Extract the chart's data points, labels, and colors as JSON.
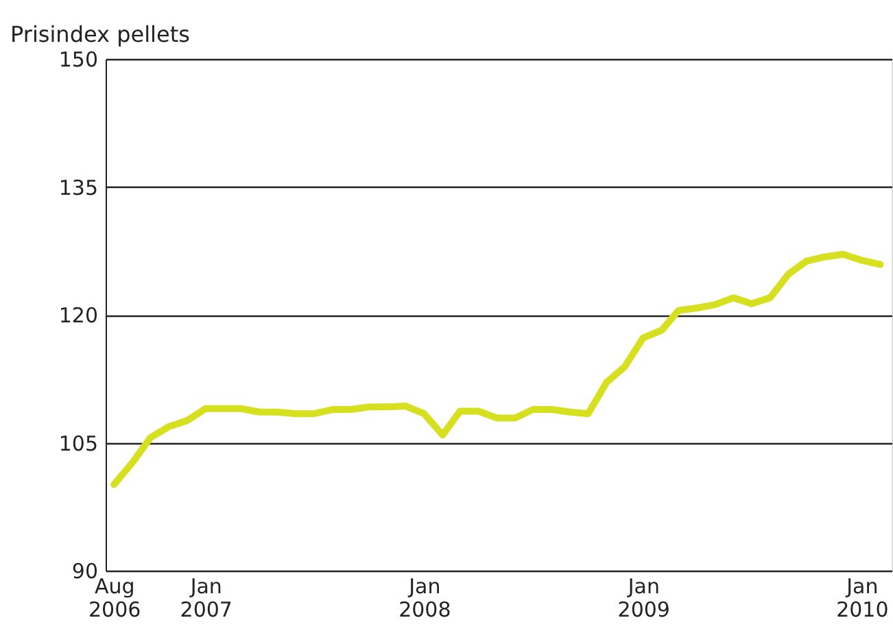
{
  "chart_data": {
    "type": "line",
    "ylabel": "Prisindex pellets",
    "x": [
      "2006-08",
      "2006-09",
      "2006-10",
      "2006-11",
      "2006-12",
      "2007-01",
      "2007-02",
      "2007-03",
      "2007-04",
      "2007-05",
      "2007-06",
      "2007-07",
      "2007-08",
      "2007-09",
      "2007-10",
      "2007-11",
      "2007-12",
      "2008-01",
      "2008-02",
      "2008-03",
      "2008-04",
      "2008-05",
      "2008-06",
      "2008-07",
      "2008-08",
      "2008-09",
      "2008-10",
      "2008-11",
      "2008-12",
      "2009-01",
      "2009-02",
      "2009-03",
      "2009-04",
      "2009-05",
      "2009-06",
      "2009-07",
      "2009-08",
      "2009-09",
      "2009-10",
      "2009-11",
      "2009-12",
      "2010-01",
      "2010-02"
    ],
    "series": [
      {
        "color": "#d6e01e",
        "values": [
          100.1,
          102.7,
          105.6,
          106.9,
          107.6,
          109.0,
          109.0,
          109.0,
          108.6,
          108.6,
          108.4,
          108.4,
          108.9,
          108.9,
          109.2,
          109.2,
          109.3,
          108.4,
          105.9,
          108.7,
          108.7,
          107.9,
          107.9,
          108.9,
          108.9,
          108.6,
          108.4,
          112.1,
          113.9,
          117.3,
          118.2,
          120.5,
          120.8,
          121.2,
          122.0,
          121.3,
          122.0,
          124.8,
          126.3,
          126.8,
          127.1,
          126.4,
          125.9
        ]
      }
    ],
    "xlim": [
      "2006-07-18",
      "2010-02-20"
    ],
    "xticks": [
      {
        "value": "2006-08",
        "label": "Aug 2006"
      },
      {
        "value": "2007-01",
        "label": "Jan 2007"
      },
      {
        "value": "2008-01",
        "label": "Jan 2008"
      },
      {
        "value": "2009-01",
        "label": "Jan 2009"
      },
      {
        "value": "2010-01",
        "label": "Jan 2010"
      }
    ],
    "ylim": [
      90,
      150
    ],
    "yticks": [
      90,
      105,
      120,
      135,
      150
    ],
    "grid": "y",
    "line_style": "solid",
    "marker": "none",
    "legend": false
  }
}
